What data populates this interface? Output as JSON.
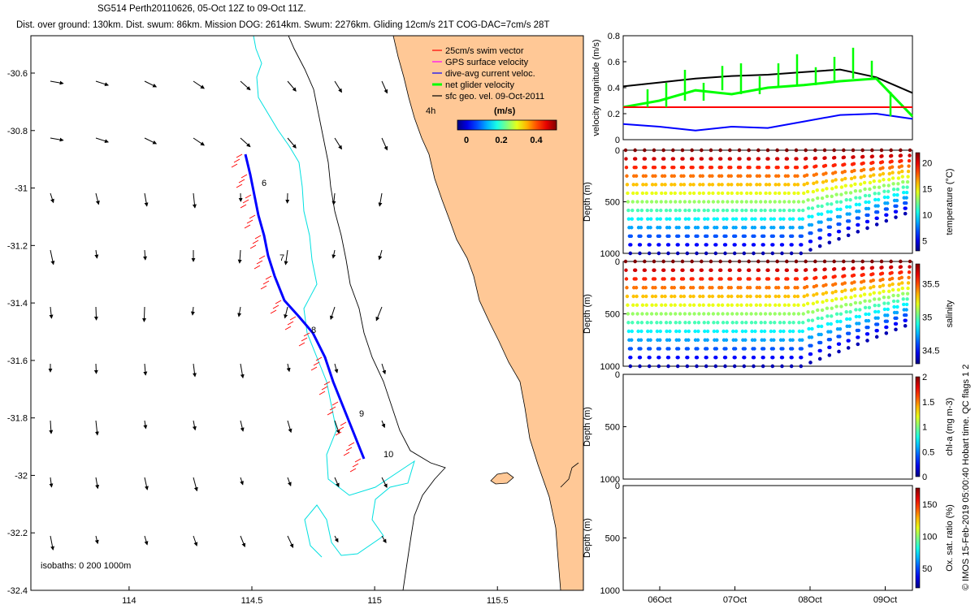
{
  "header": {
    "line1": "SG514 Perth20110626, 05-Oct 12Z to 09-Oct 11Z.",
    "line2": "Dist. over ground: 130km. Dist. swum: 86km. Mission DOG: 2614km. Swum: 2276km. Gliding 12cm/s 21T COG-DAC=7cm/s 28T"
  },
  "map": {
    "legend": [
      {
        "label": "25cm/s swim vector",
        "color": "#ff0000"
      },
      {
        "label": "GPS surface velocity",
        "color": "#ff00ff"
      },
      {
        "label": "dive-avg current veloc.",
        "color": "#0000ff"
      },
      {
        "label": "net glider velocity",
        "color": "#00ff00"
      },
      {
        "label": "sfc geo. vel. 09-Oct-2011",
        "color": "#000000"
      }
    ],
    "colorbar": {
      "title": "(m/s)",
      "scale_tag": "4h",
      "ticks": [
        "0",
        "0.2",
        "0.4"
      ]
    },
    "isobaths_label": "isobaths: 0   200  1000m",
    "day_labels": [
      "6",
      "7",
      "8",
      "9",
      "10"
    ],
    "x_ticks": [
      "114",
      "114.5",
      "115",
      "115.5"
    ],
    "y_ticks": [
      "-30.6",
      "-30.8",
      "-31",
      "-31.2",
      "-31.4",
      "-31.6",
      "-31.8",
      "-32",
      "-32.2",
      "-32.4"
    ],
    "land_color": "#ffc896",
    "isobath_200_color": "#00e0e0",
    "track_color": "#0000ff",
    "swim_vector_color": "#ff0000"
  },
  "chart_data": [
    {
      "type": "line",
      "panel": "velocity",
      "ylabel": "velocity magnitude (m/s)",
      "ylim": [
        0,
        0.8
      ],
      "y_ticks": [
        "0",
        "0.2",
        "0.4",
        "0.6",
        "0.8"
      ],
      "x": [
        "05-Oct 12Z",
        "06-Oct 00Z",
        "06-Oct 12Z",
        "07-Oct 00Z",
        "07-Oct 12Z",
        "08-Oct 00Z",
        "08-Oct 12Z",
        "09-Oct 00Z",
        "09-Oct 11Z"
      ],
      "series": [
        {
          "name": "sfc geo. vel.",
          "color": "#000000",
          "values": [
            0.41,
            0.44,
            0.47,
            0.49,
            0.5,
            0.52,
            0.54,
            0.48,
            0.36
          ]
        },
        {
          "name": "net glider velocity",
          "color": "#00ff00",
          "values": [
            0.25,
            0.3,
            0.38,
            0.35,
            0.4,
            0.42,
            0.45,
            0.47,
            0.18
          ]
        },
        {
          "name": "25cm/s swim vector",
          "color": "#ff0000",
          "values": [
            0.25,
            0.25,
            0.25,
            0.25,
            0.25,
            0.25,
            0.25,
            0.25,
            0.25
          ]
        },
        {
          "name": "dive-avg current veloc.",
          "color": "#0000ff",
          "values": [
            0.12,
            0.1,
            0.07,
            0.1,
            0.09,
            0.14,
            0.19,
            0.2,
            0.16
          ]
        }
      ]
    },
    {
      "type": "scatter",
      "panel": "temperature",
      "ylabel": "Depth (m)",
      "ylim": [
        1000,
        0
      ],
      "y_ticks": [
        "0",
        "500",
        "1000"
      ],
      "colorbar_label": "temperature (°C)",
      "colorbar_ticks": [
        "5",
        "10",
        "15",
        "20"
      ],
      "crange": [
        3,
        22
      ],
      "dives": 30,
      "max_depth_m": 1000
    },
    {
      "type": "scatter",
      "panel": "salinity",
      "ylabel": "Depth (m)",
      "ylim": [
        1000,
        0
      ],
      "y_ticks": [
        "0",
        "500",
        "1000"
      ],
      "colorbar_label": "salinity",
      "colorbar_ticks": [
        "34.5",
        "35",
        "35.5"
      ],
      "crange": [
        34.3,
        35.8
      ],
      "dives": 30,
      "max_depth_m": 1000
    },
    {
      "type": "scatter",
      "panel": "chlorophyll",
      "ylabel": "Depth (m)",
      "ylim": [
        1000,
        0
      ],
      "y_ticks": [
        "0",
        "500",
        "1000"
      ],
      "colorbar_label": "chl-a (mg m-3)",
      "colorbar_ticks": [
        "0",
        "0.5",
        "1",
        "1.5",
        "2"
      ],
      "crange": [
        0,
        2
      ],
      "dives": 0
    },
    {
      "type": "scatter",
      "panel": "oxygen",
      "ylabel": "Depth (m)",
      "ylim": [
        1000,
        0
      ],
      "y_ticks": [
        "0",
        "500",
        "1000"
      ],
      "colorbar_label": "Ox. sat. ratio (%)",
      "colorbar_ticks": [
        "50",
        "100",
        "150"
      ],
      "crange": [
        20,
        175
      ],
      "dives": 0
    }
  ],
  "time_axis": {
    "ticks": [
      "06Oct",
      "07Oct",
      "08Oct",
      "09Oct"
    ]
  },
  "side_note": "© IMOS 15-Feb-2019 05:00:40 Hobart time. QC flags 1  2"
}
